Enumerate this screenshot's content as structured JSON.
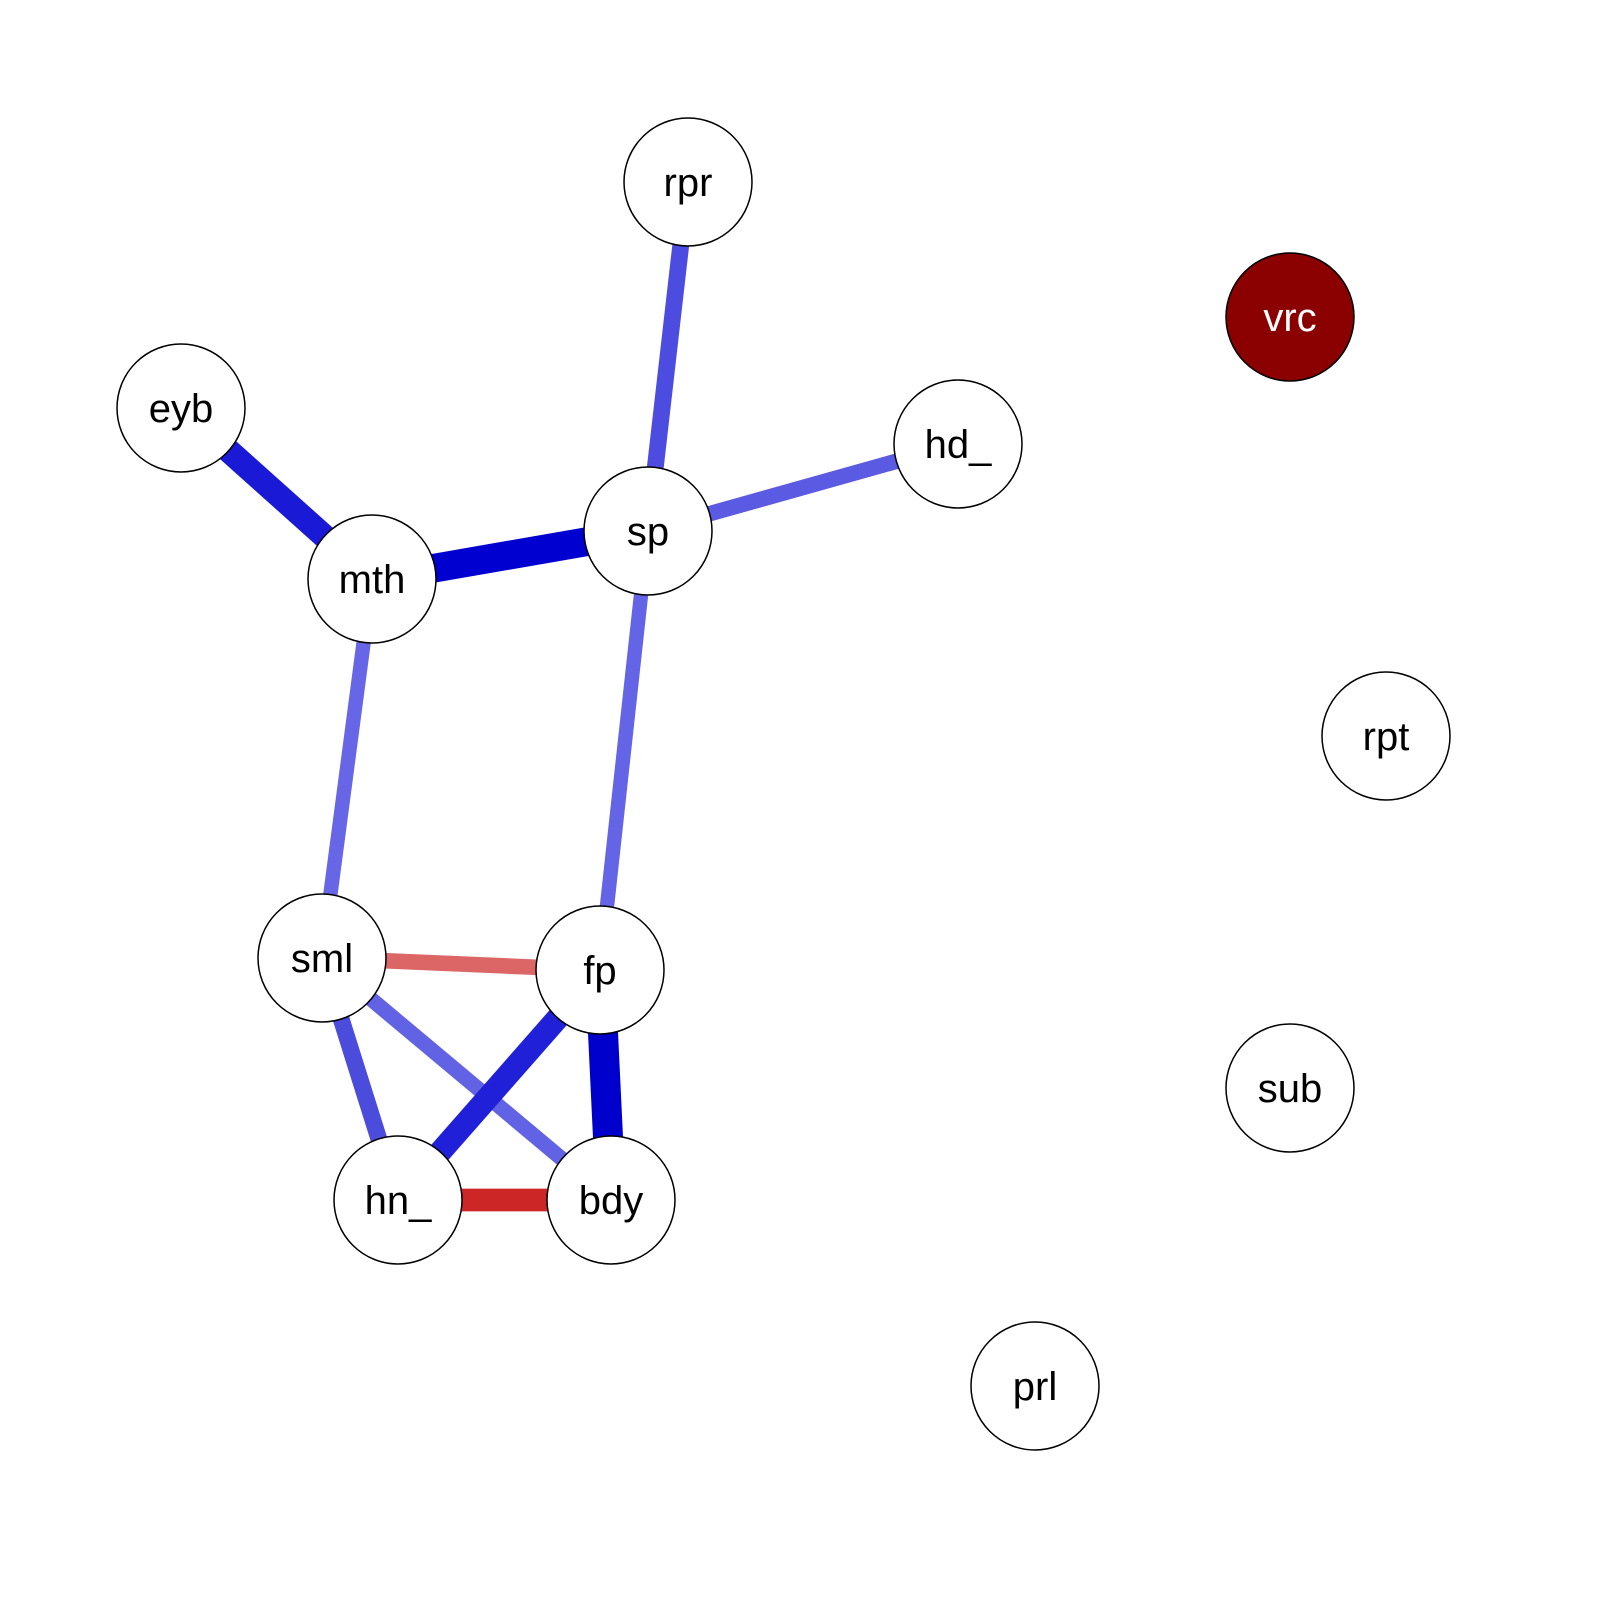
{
  "network": {
    "nodes": [
      {
        "id": "rpr",
        "label": "rpr",
        "fill": "#ffffff",
        "text_color": "#000000"
      },
      {
        "id": "vrc",
        "label": "vrc",
        "fill": "#8b0000",
        "text_color": "#ffffff"
      },
      {
        "id": "eyb",
        "label": "eyb",
        "fill": "#ffffff",
        "text_color": "#000000"
      },
      {
        "id": "hd_",
        "label": "hd_",
        "fill": "#ffffff",
        "text_color": "#000000"
      },
      {
        "id": "sp",
        "label": "sp",
        "fill": "#ffffff",
        "text_color": "#000000"
      },
      {
        "id": "mth",
        "label": "mth",
        "fill": "#ffffff",
        "text_color": "#000000"
      },
      {
        "id": "rpt",
        "label": "rpt",
        "fill": "#ffffff",
        "text_color": "#000000"
      },
      {
        "id": "sml",
        "label": "sml",
        "fill": "#ffffff",
        "text_color": "#000000"
      },
      {
        "id": "fp",
        "label": "fp",
        "fill": "#ffffff",
        "text_color": "#000000"
      },
      {
        "id": "sub",
        "label": "sub",
        "fill": "#ffffff",
        "text_color": "#000000"
      },
      {
        "id": "hn_",
        "label": "hn_",
        "fill": "#ffffff",
        "text_color": "#000000"
      },
      {
        "id": "bdy",
        "label": "bdy",
        "fill": "#ffffff",
        "text_color": "#000000"
      },
      {
        "id": "prl",
        "label": "prl",
        "fill": "#ffffff",
        "text_color": "#000000"
      }
    ],
    "edges": [
      {
        "from": "rpr",
        "to": "sp",
        "sign": "positive",
        "color": "#4c4ce0",
        "strength": 0.45
      },
      {
        "from": "sp",
        "to": "hd_",
        "sign": "positive",
        "color": "#5a5ae2",
        "strength": 0.4
      },
      {
        "from": "eyb",
        "to": "mth",
        "sign": "positive",
        "color": "#1a1ad6",
        "strength": 0.75
      },
      {
        "from": "mth",
        "to": "sp",
        "sign": "positive",
        "color": "#0000d0",
        "strength": 0.95
      },
      {
        "from": "mth",
        "to": "sml",
        "sign": "positive",
        "color": "#6666e6",
        "strength": 0.35
      },
      {
        "from": "sp",
        "to": "fp",
        "sign": "positive",
        "color": "#6464e6",
        "strength": 0.35
      },
      {
        "from": "sml",
        "to": "fp",
        "sign": "negative",
        "color": "#dc6666",
        "strength": 0.4
      },
      {
        "from": "sml",
        "to": "hn_",
        "sign": "positive",
        "color": "#4c4cdc",
        "strength": 0.45
      },
      {
        "from": "sml",
        "to": "bdy",
        "sign": "positive",
        "color": "#6262e4",
        "strength": 0.38
      },
      {
        "from": "fp",
        "to": "hn_",
        "sign": "positive",
        "color": "#2020d8",
        "strength": 0.7
      },
      {
        "from": "fp",
        "to": "bdy",
        "sign": "positive",
        "color": "#0000cc",
        "strength": 1.0
      },
      {
        "from": "hn_",
        "to": "bdy",
        "sign": "negative",
        "color": "#cc2626",
        "strength": 0.7
      }
    ]
  }
}
